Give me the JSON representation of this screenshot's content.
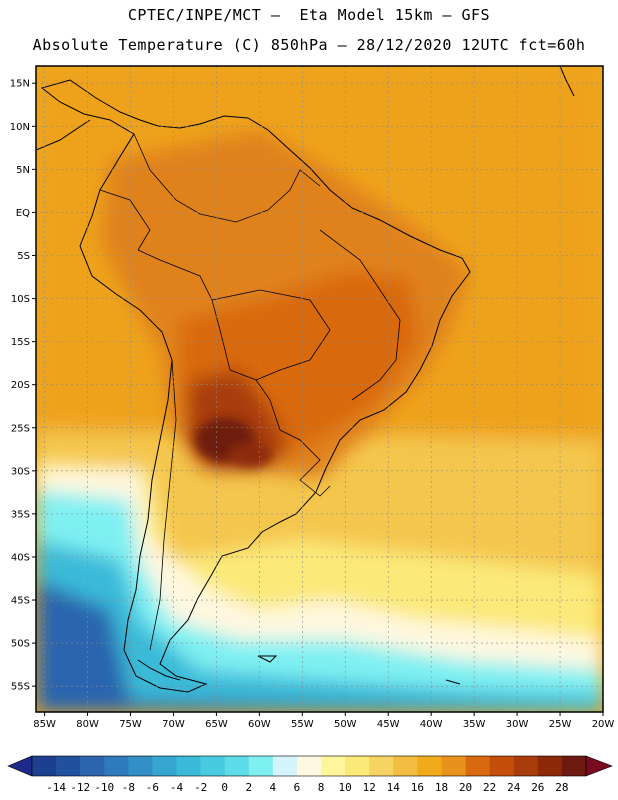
{
  "header": {
    "line1": "CPTEC/INPE/MCT –  Eta Model 15km – GFS",
    "line2": "Absolute Temperature (C) 850hPa – 28/12/2020 12UTC fct=60h"
  },
  "map": {
    "region": "South America",
    "lat_ticks": [
      "15N",
      "10N",
      "5N",
      "EQ",
      "5S",
      "10S",
      "15S",
      "20S",
      "25S",
      "30S",
      "35S",
      "40S",
      "45S",
      "50S",
      "55S"
    ],
    "lat_values": [
      15,
      10,
      5,
      0,
      -5,
      -10,
      -15,
      -20,
      -25,
      -30,
      -35,
      -40,
      -45,
      -50,
      -55
    ],
    "lon_ticks": [
      "85W",
      "80W",
      "75W",
      "70W",
      "65W",
      "60W",
      "55W",
      "50W",
      "45W",
      "40W",
      "35W",
      "30W",
      "25W",
      "20W"
    ],
    "lon_values": [
      -85,
      -80,
      -75,
      -70,
      -65,
      -60,
      -55,
      -50,
      -45,
      -40,
      -35,
      -30,
      -25,
      -20
    ],
    "lon_range": [
      -86,
      -20
    ],
    "lat_range": [
      -58,
      17
    ]
  },
  "colorbar": {
    "labels": [
      "-14",
      "-12",
      "-10",
      "-8",
      "-6",
      "-4",
      "-2",
      "0",
      "2",
      "4",
      "6",
      "8",
      "10",
      "12",
      "14",
      "16",
      "18",
      "20",
      "22",
      "24",
      "26",
      "28"
    ],
    "colors": [
      "#1c3f8f",
      "#21519e",
      "#2a65ad",
      "#2f7abb",
      "#3290c6",
      "#35a6cf",
      "#3abad8",
      "#47cbe1",
      "#5ddce8",
      "#7ff0f2",
      "#d6f4fb",
      "#fff8e0",
      "#fff69c",
      "#fbe979",
      "#f6d462",
      "#f2bd42",
      "#f0aa1c",
      "#e8921b",
      "#d9690e",
      "#c54f0a",
      "#a83c0a",
      "#8c2a08",
      "#6e1a10"
    ],
    "under_color": "#1e2a8a",
    "over_color": "#7a0a20"
  }
}
